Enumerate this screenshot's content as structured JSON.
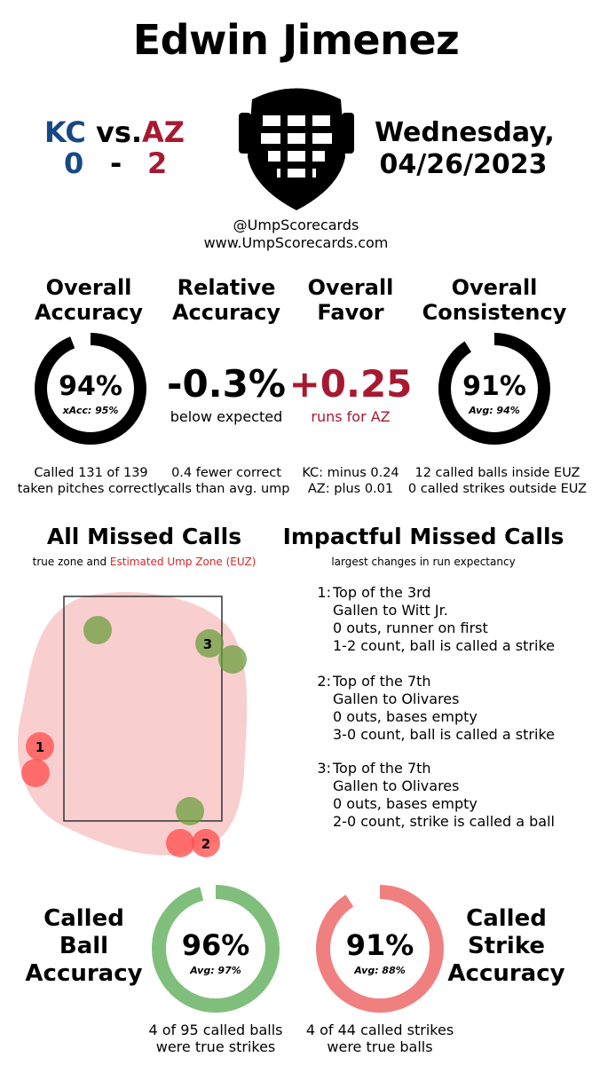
{
  "header": {
    "umpire_name": "Edwin Jimenez",
    "away_team": "KC",
    "home_team": "AZ",
    "vs": "vs.",
    "away_score": "0",
    "dash": "-",
    "home_score": "2",
    "date_line1": "Wednesday,",
    "date_line2": "04/26/2023",
    "twitter": "@UmpScorecards",
    "website": "www.UmpScorecards.com",
    "colors": {
      "away": "#174885",
      "home": "#a71930"
    }
  },
  "stats": {
    "overall_accuracy": {
      "title1": "Overall",
      "title2": "Accuracy",
      "value": "94%",
      "sub": "xAcc: 95%",
      "fraction": 0.94,
      "foot1": "Called 131 of 139",
      "foot2": "taken pitches correctly"
    },
    "relative_accuracy": {
      "title1": "Relative",
      "title2": "Accuracy",
      "value": "-0.3%",
      "sub": "below expected",
      "foot1": "0.4 fewer correct",
      "foot2": "calls than avg. ump"
    },
    "overall_favor": {
      "title1": "Overall",
      "title2": "Favor",
      "value": "+0.25",
      "sub": "runs for AZ",
      "foot1": "KC: minus 0.24",
      "foot2": "AZ: plus 0.01"
    },
    "overall_consistency": {
      "title1": "Overall",
      "title2": "Consistency",
      "value": "91%",
      "sub": "Avg: 94%",
      "fraction": 0.91,
      "foot1": "12 called balls inside EUZ",
      "foot2": "0 called strikes outside EUZ"
    }
  },
  "missed_calls": {
    "title": "All Missed Calls",
    "subtitle_a": "true zone and",
    "subtitle_b": "Estimated Ump Zone (EUZ)",
    "markers": [
      {
        "label": "1"
      },
      {
        "label": "2"
      },
      {
        "label": "3"
      }
    ]
  },
  "impactful": {
    "title": "Impactful Missed Calls",
    "subtitle": "largest changes in run expectancy",
    "items": [
      {
        "num": "1:",
        "l1": "Top of the 3rd",
        "l2": "Gallen to Witt Jr.",
        "l3": "0 outs, runner on first",
        "l4": "1-2 count, ball is called a strike"
      },
      {
        "num": "2:",
        "l1": "Top of the 7th",
        "l2": "Gallen to Olivares",
        "l3": "0 outs, bases empty",
        "l4": "3-0 count, ball is called a strike"
      },
      {
        "num": "3:",
        "l1": "Top of the 7th",
        "l2": "Gallen to Olivares",
        "l3": "0 outs, bases empty",
        "l4": "2-0 count, strike is called a ball"
      }
    ]
  },
  "called": {
    "ball": {
      "label1": "Called",
      "label2": "Ball",
      "label3": "Accuracy",
      "value": "96%",
      "sub": "Avg: 97%",
      "fraction": 0.96,
      "foot1": "4 of 95 called balls",
      "foot2": "were true strikes",
      "color": "#7fbf7b"
    },
    "strike": {
      "label1": "Called",
      "label2": "Strike",
      "label3": "Accuracy",
      "value": "91%",
      "sub": "Avg: 88%",
      "fraction": 0.91,
      "foot1": "4 of 44 called strikes",
      "foot2": "were true balls",
      "color": "#f08080"
    }
  }
}
